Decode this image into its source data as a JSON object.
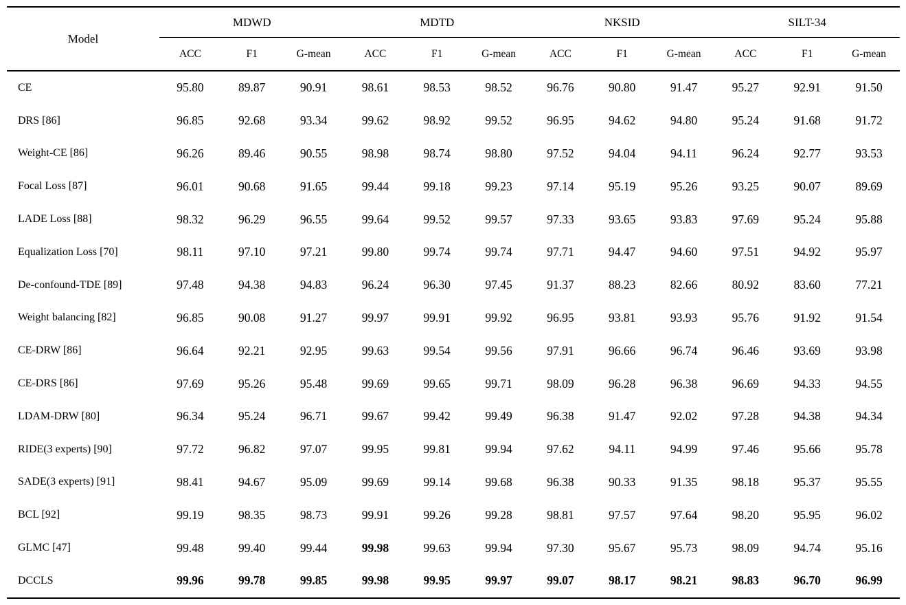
{
  "colors": {
    "background": "#ffffff",
    "text": "#000000",
    "rule": "#000000"
  },
  "table": {
    "model_header": "Model",
    "groups": [
      {
        "label": "MDWD",
        "metrics": [
          "ACC",
          "F1",
          "G-mean"
        ]
      },
      {
        "label": "MDTD",
        "metrics": [
          "ACC",
          "F1",
          "G-mean"
        ]
      },
      {
        "label": "NKSID",
        "metrics": [
          "ACC",
          "F1",
          "G-mean"
        ]
      },
      {
        "label": "SILT-34",
        "metrics": [
          "ACC",
          "F1",
          "G-mean"
        ]
      }
    ],
    "rows": [
      {
        "model": "CE",
        "values": [
          "95.80",
          "89.87",
          "90.91",
          "98.61",
          "98.53",
          "98.52",
          "96.76",
          "90.80",
          "91.47",
          "95.27",
          "92.91",
          "91.50"
        ],
        "bold": []
      },
      {
        "model": "DRS [86]",
        "values": [
          "96.85",
          "92.68",
          "93.34",
          "99.62",
          "98.92",
          "99.52",
          "96.95",
          "94.62",
          "94.80",
          "95.24",
          "91.68",
          "91.72"
        ],
        "bold": []
      },
      {
        "model": "Weight-CE [86]",
        "values": [
          "96.26",
          "89.46",
          "90.55",
          "98.98",
          "98.74",
          "98.80",
          "97.52",
          "94.04",
          "94.11",
          "96.24",
          "92.77",
          "93.53"
        ],
        "bold": []
      },
      {
        "model": "Focal Loss [87]",
        "values": [
          "96.01",
          "90.68",
          "91.65",
          "99.44",
          "99.18",
          "99.23",
          "97.14",
          "95.19",
          "95.26",
          "93.25",
          "90.07",
          "89.69"
        ],
        "bold": []
      },
      {
        "model": "LADE Loss [88]",
        "values": [
          "98.32",
          "96.29",
          "96.55",
          "99.64",
          "99.52",
          "99.57",
          "97.33",
          "93.65",
          "93.83",
          "97.69",
          "95.24",
          "95.88"
        ],
        "bold": []
      },
      {
        "model": "Equalization Loss [70]",
        "values": [
          "98.11",
          "97.10",
          "97.21",
          "99.80",
          "99.74",
          "99.74",
          "97.71",
          "94.47",
          "94.60",
          "97.51",
          "94.92",
          "95.97"
        ],
        "bold": []
      },
      {
        "model": "De-confound-TDE [89]",
        "values": [
          "97.48",
          "94.38",
          "94.83",
          "96.24",
          "96.30",
          "97.45",
          "91.37",
          "88.23",
          "82.66",
          "80.92",
          "83.60",
          "77.21"
        ],
        "bold": []
      },
      {
        "model": "Weight balancing [82]",
        "values": [
          "96.85",
          "90.08",
          "91.27",
          "99.97",
          "99.91",
          "99.92",
          "96.95",
          "93.81",
          "93.93",
          "95.76",
          "91.92",
          "91.54"
        ],
        "bold": []
      },
      {
        "model": "CE-DRW [86]",
        "values": [
          "96.64",
          "92.21",
          "92.95",
          "99.63",
          "99.54",
          "99.56",
          "97.91",
          "96.66",
          "96.74",
          "96.46",
          "93.69",
          "93.98"
        ],
        "bold": []
      },
      {
        "model": "CE-DRS [86]",
        "values": [
          "97.69",
          "95.26",
          "95.48",
          "99.69",
          "99.65",
          "99.71",
          "98.09",
          "96.28",
          "96.38",
          "96.69",
          "94.33",
          "94.55"
        ],
        "bold": []
      },
      {
        "model": "LDAM-DRW [80]",
        "values": [
          "96.34",
          "95.24",
          "96.71",
          "99.67",
          "99.42",
          "99.49",
          "96.38",
          "91.47",
          "92.02",
          "97.28",
          "94.38",
          "94.34"
        ],
        "bold": []
      },
      {
        "model": "RIDE(3 experts) [90]",
        "values": [
          "97.72",
          "96.82",
          "97.07",
          "99.95",
          "99.81",
          "99.94",
          "97.62",
          "94.11",
          "94.99",
          "97.46",
          "95.66",
          "95.78"
        ],
        "bold": []
      },
      {
        "model": "SADE(3 experts) [91]",
        "values": [
          "98.41",
          "94.67",
          "95.09",
          "99.69",
          "99.14",
          "99.68",
          "96.38",
          "90.33",
          "91.35",
          "98.18",
          "95.37",
          "95.55"
        ],
        "bold": []
      },
      {
        "model": "BCL [92]",
        "values": [
          "99.19",
          "98.35",
          "98.73",
          "99.91",
          "99.26",
          "99.28",
          "98.81",
          "97.57",
          "97.64",
          "98.20",
          "95.95",
          "96.02"
        ],
        "bold": []
      },
      {
        "model": "GLMC [47]",
        "values": [
          "99.48",
          "99.40",
          "99.44",
          "99.98",
          "99.63",
          "99.94",
          "97.30",
          "95.67",
          "95.73",
          "98.09",
          "94.74",
          "95.16"
        ],
        "bold": [
          3
        ]
      },
      {
        "model": "DCCLS",
        "values": [
          "99.96",
          "99.78",
          "99.85",
          "99.98",
          "99.95",
          "99.97",
          "99.07",
          "98.17",
          "98.21",
          "98.83",
          "96.70",
          "96.99"
        ],
        "bold": [
          0,
          1,
          2,
          3,
          4,
          5,
          6,
          7,
          8,
          9,
          10,
          11
        ]
      }
    ]
  }
}
